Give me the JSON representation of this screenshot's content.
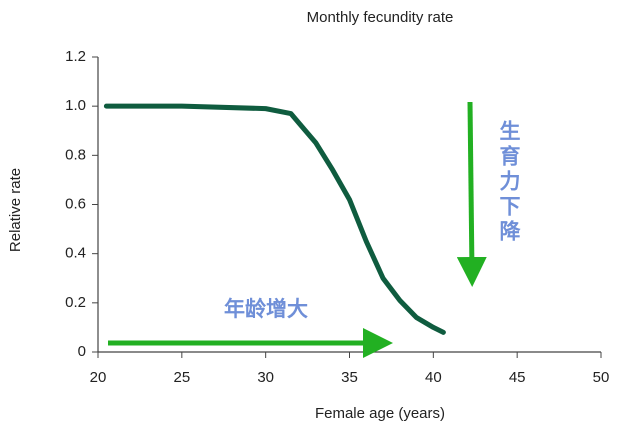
{
  "chart_data": {
    "type": "line",
    "title": "Monthly fecundity rate",
    "x_label": "Female age (years)",
    "y_label": "Relative rate",
    "x": [
      20.5,
      25,
      30,
      31.5,
      33,
      34,
      35,
      36,
      37,
      38,
      39,
      40,
      40.6
    ],
    "values": [
      1,
      1,
      0.99,
      0.97,
      0.85,
      0.74,
      0.62,
      0.45,
      0.3,
      0.21,
      0.14,
      0.1,
      0.08
    ],
    "color": "#0f5c3f",
    "xlim": [
      20,
      50
    ],
    "xticks": [
      20,
      25,
      30,
      35,
      40,
      45,
      50
    ],
    "ylim": [
      0,
      1.2
    ],
    "yticks": [
      0,
      0.2,
      0.4,
      0.6,
      0.8,
      {
        "value": 1,
        "label": "1.0"
      },
      1.2
    ],
    "annotations": [
      "年龄增大",
      "生育力下降"
    ]
  }
}
